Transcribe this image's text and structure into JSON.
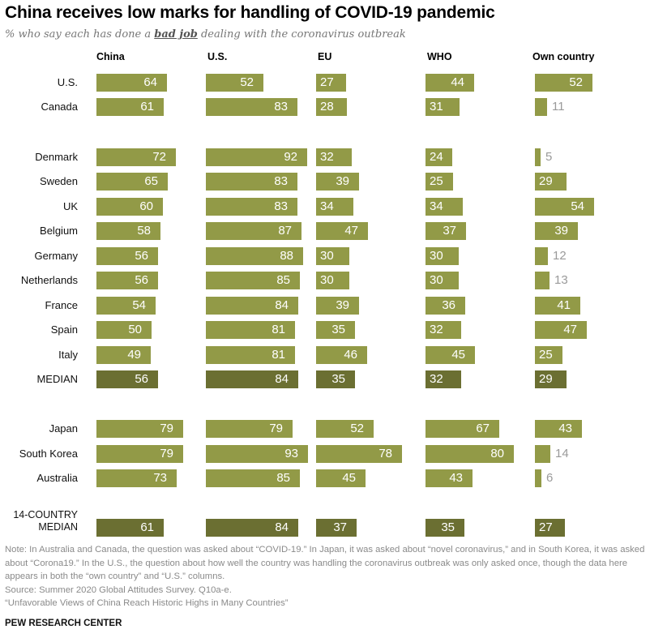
{
  "chart_data": {
    "type": "bar",
    "title": "China receives low marks for handling of COVID-19 pandemic",
    "subtitle_pre": "% who say each has done a ",
    "subtitle_em": "bad job",
    "subtitle_post": " dealing with the coronavirus outbreak",
    "columns": [
      "China",
      "U.S.",
      "EU",
      "WHO",
      "Own country"
    ],
    "xlim": [
      0,
      100
    ],
    "colors": {
      "bar": "#929a47",
      "median": "#6b6f32",
      "outside_label": "#9a9a9a"
    },
    "rows": [
      {
        "label": "U.S.",
        "values": [
          64,
          52,
          27,
          44,
          52
        ],
        "median": false
      },
      {
        "label": "Canada",
        "values": [
          61,
          83,
          28,
          31,
          11
        ],
        "median": false
      },
      {
        "label": "Denmark",
        "values": [
          72,
          92,
          32,
          24,
          5
        ],
        "median": false
      },
      {
        "label": "Sweden",
        "values": [
          65,
          83,
          39,
          25,
          29
        ],
        "median": false
      },
      {
        "label": "UK",
        "values": [
          60,
          83,
          34,
          34,
          54
        ],
        "median": false
      },
      {
        "label": "Belgium",
        "values": [
          58,
          87,
          47,
          37,
          39
        ],
        "median": false
      },
      {
        "label": "Germany",
        "values": [
          56,
          88,
          30,
          30,
          12
        ],
        "median": false
      },
      {
        "label": "Netherlands",
        "values": [
          56,
          85,
          30,
          30,
          13
        ],
        "median": false
      },
      {
        "label": "France",
        "values": [
          54,
          84,
          39,
          36,
          41
        ],
        "median": false
      },
      {
        "label": "Spain",
        "values": [
          50,
          81,
          35,
          32,
          47
        ],
        "median": false
      },
      {
        "label": "Italy",
        "values": [
          49,
          81,
          46,
          45,
          25
        ],
        "median": false
      },
      {
        "label": "MEDIAN",
        "values": [
          56,
          84,
          35,
          32,
          29
        ],
        "median": true
      },
      {
        "label": "Japan",
        "values": [
          79,
          79,
          52,
          67,
          43
        ],
        "median": false
      },
      {
        "label": "South Korea",
        "values": [
          79,
          93,
          78,
          80,
          14
        ],
        "median": false
      },
      {
        "label": "Australia",
        "values": [
          73,
          85,
          45,
          43,
          6
        ],
        "median": false
      },
      {
        "label": "14-COUNTRY MEDIAN",
        "label_lines": [
          "14-COUNTRY",
          "MEDIAN"
        ],
        "values": [
          61,
          84,
          37,
          35,
          27
        ],
        "median": true
      }
    ]
  },
  "footer": {
    "note": "Note: In Australia and Canada, the question was asked about “COVID-19.” In Japan, it was asked about “novel coronavirus,” and in South Korea, it was asked about “Corona19.” In the U.S., the question about how well the country was handling the coronavirus outbreak was only asked once, though the data here appears in both the “own country” and “U.S.” columns.",
    "source": "Source: Summer 2020 Global Attitudes Survey. Q10a-e.",
    "report": "“Unfavorable Views of China Reach Historic Highs in Many Countries”",
    "brand": "PEW RESEARCH CENTER"
  }
}
